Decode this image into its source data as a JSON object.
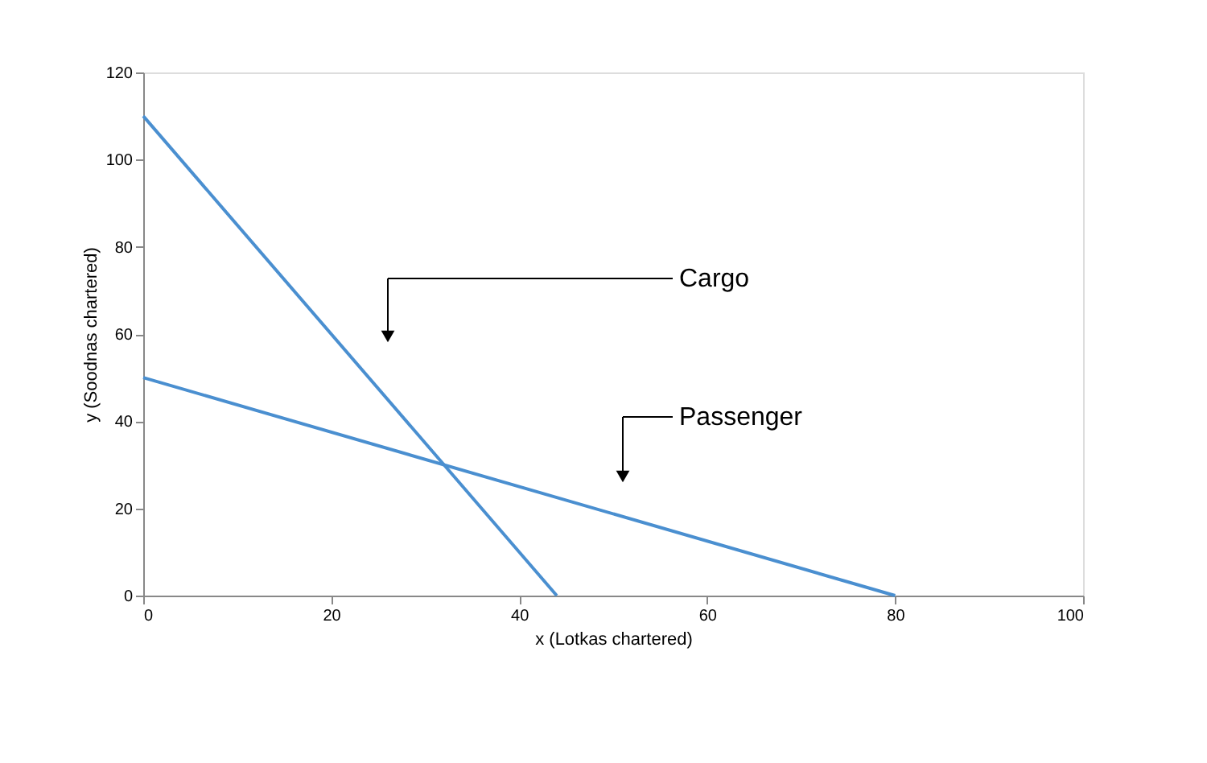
{
  "chart_data": {
    "type": "line",
    "xlabel": "x (Lotkas chartered)",
    "ylabel": "y (Soodnas chartered)",
    "series": [
      {
        "color": "#4a8fd0",
        "x": [
          0,
          44
        ],
        "values": [
          110,
          0
        ]
      },
      {
        "color": "#4a8fd0",
        "x": [
          0,
          80
        ],
        "values": [
          50,
          0
        ]
      }
    ],
    "annotations": [
      "Cargo",
      "Passenger"
    ],
    "xlim": [
      0,
      100
    ],
    "xticks": [
      0,
      20,
      40,
      60,
      80,
      100
    ],
    "ylim": [
      0,
      120
    ],
    "yticks": [
      0,
      20,
      40,
      60,
      80,
      100,
      120
    ],
    "grid": false,
    "marker": "none",
    "line_style": "solid"
  }
}
